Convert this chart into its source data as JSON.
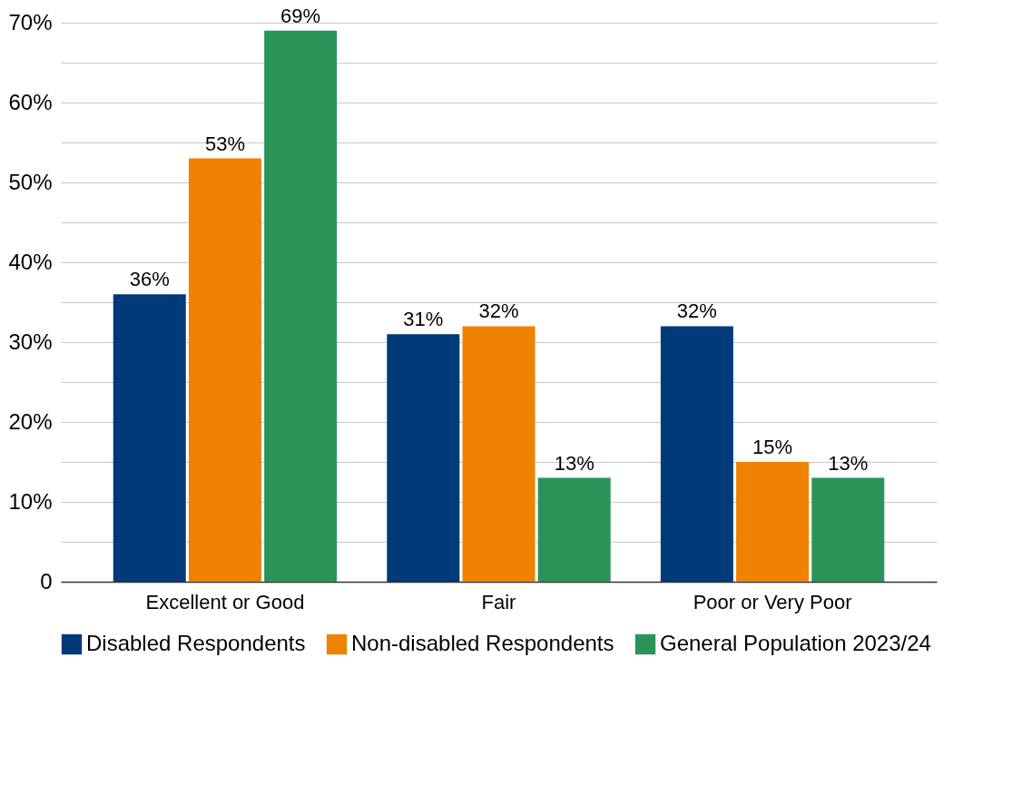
{
  "chart_data": {
    "type": "bar",
    "categories": [
      "Excellent or Good",
      "Fair",
      "Poor or Very Poor"
    ],
    "series": [
      {
        "name": "Disabled Respondents",
        "color": "#003a78",
        "values": [
          36,
          31,
          32
        ],
        "value_labels": [
          "36%",
          "31%",
          "32%"
        ]
      },
      {
        "name": "Non-disabled Respondents",
        "color": "#ef8200",
        "values": [
          53,
          32,
          15
        ],
        "value_labels": [
          "53%",
          "32%",
          "15%"
        ]
      },
      {
        "name": "General Population 2023/24",
        "color": "#2a9458",
        "values": [
          69,
          13,
          13
        ],
        "value_labels": [
          "69%",
          "13%",
          "13%"
        ]
      }
    ],
    "ylim": [
      0,
      70
    ],
    "yticks": [
      {
        "value": 0,
        "label": "0"
      },
      {
        "value": 5,
        "label": null
      },
      {
        "value": 10,
        "label": "10%"
      },
      {
        "value": 15,
        "label": null
      },
      {
        "value": 20,
        "label": "20%"
      },
      {
        "value": 25,
        "label": null
      },
      {
        "value": 30,
        "label": "30%"
      },
      {
        "value": 35,
        "label": null
      },
      {
        "value": 40,
        "label": "40%"
      },
      {
        "value": 45,
        "label": null
      },
      {
        "value": 50,
        "label": "50%"
      },
      {
        "value": 55,
        "label": null
      },
      {
        "value": 60,
        "label": "60%"
      },
      {
        "value": 65,
        "label": null
      },
      {
        "value": 70,
        "label": "70%"
      }
    ],
    "grid": "y",
    "legend": "bottom"
  }
}
